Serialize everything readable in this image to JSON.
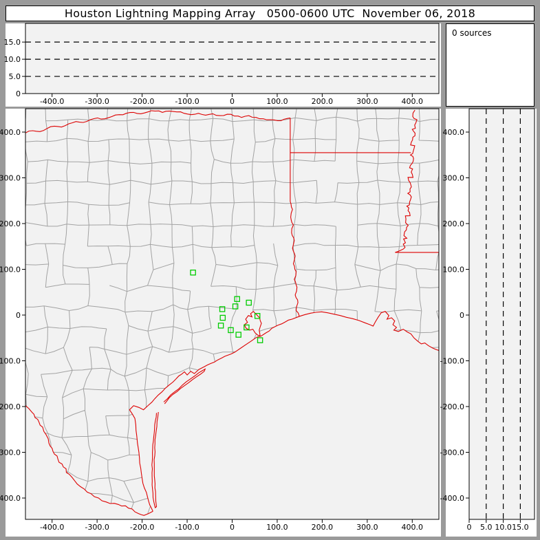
{
  "title": "Houston Lightning Mapping Array   0500-0600 UTC  November 06, 2018",
  "sources_panel": {
    "label": "0 sources"
  },
  "colors": {
    "frame_gray": "#9a9a9a",
    "plot_bg": "#f2f2f2",
    "panel_white": "#ffffff",
    "county_line": "#a2a2a2",
    "state_line": "#dd0000",
    "station_green": "#00cc00",
    "axis_black": "#000000"
  },
  "axes": {
    "east_west_ticks": [
      {
        "v": -400,
        "label": "-400.0"
      },
      {
        "v": -300,
        "label": "-300.0"
      },
      {
        "v": -200,
        "label": "-200.0"
      },
      {
        "v": -100,
        "label": "-100.0"
      },
      {
        "v": 0,
        "label": "0"
      },
      {
        "v": 100,
        "label": "100.0"
      },
      {
        "v": 200,
        "label": "200.0"
      },
      {
        "v": 300,
        "label": "300.0"
      },
      {
        "v": 400,
        "label": "400.0"
      }
    ],
    "north_south_ticks": [
      {
        "v": 400,
        "label": "400.0"
      },
      {
        "v": 300,
        "label": "300.0"
      },
      {
        "v": 200,
        "label": "200.0"
      },
      {
        "v": 100,
        "label": "100.0"
      },
      {
        "v": 0,
        "label": "0"
      },
      {
        "v": -100,
        "label": "-100.0"
      },
      {
        "v": -200,
        "label": "-200.0"
      },
      {
        "v": -300,
        "label": "-300.0"
      },
      {
        "v": -400,
        "label": "-400.0"
      }
    ],
    "altitude_ticks": [
      {
        "v": 0,
        "label": "0"
      },
      {
        "v": 5,
        "label": "5.0"
      },
      {
        "v": 10,
        "label": "10.0"
      },
      {
        "v": 15,
        "label": "15.0"
      }
    ],
    "altitude_dashed_km": [
      5,
      10,
      15
    ]
  },
  "map": {
    "stations_km": [
      [
        -87,
        93
      ],
      [
        11,
        35
      ],
      [
        7,
        19
      ],
      [
        37,
        27
      ],
      [
        -22,
        13
      ],
      [
        -21,
        -6
      ],
      [
        56,
        -2
      ],
      [
        -25,
        -23
      ],
      [
        -3,
        -33
      ],
      [
        32,
        -27
      ],
      [
        14,
        -43
      ],
      [
        62,
        -55
      ]
    ],
    "mesh": {
      "seed": 987654,
      "spacing": 46,
      "jitter_north": 5,
      "jitter_mid": 9,
      "jitter_south": 12,
      "skip_north": 0.08,
      "skip_south": 0.16
    },
    "features": {
      "coast": {
        "amp": 1.2,
        "step": 10,
        "pts": [
          [
            -176,
            -429
          ],
          [
            -183,
            -415
          ],
          [
            -188,
            -398
          ],
          [
            -195,
            -378
          ],
          [
            -200,
            -357
          ],
          [
            -203,
            -335
          ],
          [
            -206,
            -312
          ],
          [
            -209,
            -288
          ],
          [
            -212,
            -263
          ],
          [
            -214,
            -240
          ],
          [
            -216,
            -226
          ],
          [
            -222,
            -216
          ],
          [
            -228,
            -207
          ],
          [
            -219,
            -198
          ],
          [
            -207,
            -202
          ],
          [
            -197,
            -207
          ],
          [
            -186,
            -197
          ],
          [
            -172,
            -183
          ],
          [
            -156,
            -168
          ],
          [
            -140,
            -153
          ],
          [
            -124,
            -139
          ],
          [
            -112,
            -129
          ],
          [
            -106,
            -124
          ],
          [
            -100,
            -131
          ],
          [
            -92,
            -123
          ],
          [
            -84,
            -128
          ],
          [
            -74,
            -119
          ],
          [
            -62,
            -113
          ],
          [
            -48,
            -106
          ],
          [
            -32,
            -98
          ],
          [
            -16,
            -90
          ],
          [
            -2,
            -85
          ],
          [
            6,
            -81
          ],
          [
            18,
            -73
          ],
          [
            30,
            -65
          ],
          [
            42,
            -57
          ],
          [
            52,
            -50
          ],
          [
            56,
            -48
          ],
          [
            64,
            -46
          ],
          [
            75,
            -39
          ],
          [
            88,
            -29
          ],
          [
            102,
            -22
          ],
          [
            118,
            -15
          ],
          [
            133,
            -9
          ],
          [
            146,
            -4
          ],
          [
            152,
            -2
          ],
          [
            162,
            1
          ],
          [
            174,
            4
          ],
          [
            186,
            6
          ],
          [
            199,
            7
          ],
          [
            212,
            5
          ],
          [
            226,
            2
          ],
          [
            240,
            -1
          ],
          [
            254,
            -5
          ],
          [
            268,
            -8
          ],
          [
            282,
            -12
          ],
          [
            295,
            -17
          ],
          [
            306,
            -21
          ],
          [
            313,
            -24
          ],
          [
            318,
            -15
          ],
          [
            324,
            -5
          ],
          [
            331,
            5
          ],
          [
            340,
            8
          ],
          [
            348,
            -1
          ],
          [
            344,
            -9
          ],
          [
            354,
            -6
          ],
          [
            361,
            -13
          ],
          [
            357,
            -21
          ],
          [
            365,
            -27
          ],
          [
            359,
            -33
          ],
          [
            369,
            -36
          ],
          [
            380,
            -31
          ],
          [
            389,
            -37
          ],
          [
            397,
            -41
          ],
          [
            404,
            -50
          ],
          [
            412,
            -57
          ],
          [
            420,
            -63
          ],
          [
            428,
            -61
          ],
          [
            436,
            -67
          ],
          [
            445,
            -72
          ],
          [
            452,
            -75
          ],
          [
            461,
            -78
          ]
        ]
      },
      "galveston_bay": {
        "amp": 1.0,
        "step": 7,
        "closed": true,
        "fill": true,
        "pts": [
          [
            62,
            -45
          ],
          [
            60,
            -33
          ],
          [
            65,
            -18
          ],
          [
            61,
            -6
          ],
          [
            54,
            1
          ],
          [
            47,
            8
          ],
          [
            41,
            3
          ],
          [
            44,
            -4
          ],
          [
            36,
            -1
          ],
          [
            30,
            -9
          ],
          [
            34,
            -16
          ],
          [
            27,
            -21
          ],
          [
            31,
            -29
          ],
          [
            39,
            -33
          ],
          [
            46,
            -31
          ],
          [
            51,
            -39
          ],
          [
            57,
            -44
          ]
        ]
      },
      "rio_grande": {
        "amp": 2.5,
        "step": 8,
        "pts": [
          [
            -459,
            -198
          ],
          [
            -445,
            -212
          ],
          [
            -432,
            -228
          ],
          [
            -421,
            -245
          ],
          [
            -413,
            -262
          ],
          [
            -407,
            -280
          ],
          [
            -398,
            -298
          ],
          [
            -387,
            -315
          ],
          [
            -375,
            -332
          ],
          [
            -362,
            -348
          ],
          [
            -350,
            -362
          ],
          [
            -337,
            -375
          ],
          [
            -322,
            -387
          ],
          [
            -306,
            -397
          ],
          [
            -289,
            -406
          ],
          [
            -271,
            -412
          ],
          [
            -253,
            -414
          ],
          [
            -237,
            -417
          ],
          [
            -222,
            -424
          ],
          [
            -208,
            -434
          ],
          [
            -196,
            -438
          ],
          [
            -186,
            -434
          ],
          [
            -176,
            -429
          ]
        ]
      },
      "red_river": {
        "amp": 2,
        "step": 8,
        "pts": [
          [
            -459,
            398
          ],
          [
            -443,
            403
          ],
          [
            -427,
            401
          ],
          [
            -411,
            408
          ],
          [
            -395,
            413
          ],
          [
            -379,
            411
          ],
          [
            -363,
            418
          ],
          [
            -347,
            423
          ],
          [
            -331,
            421
          ],
          [
            -315,
            427
          ],
          [
            -299,
            431
          ],
          [
            -283,
            429
          ],
          [
            -267,
            434
          ],
          [
            -251,
            438
          ],
          [
            -235,
            441
          ],
          [
            -219,
            443
          ],
          [
            -203,
            440
          ],
          [
            -187,
            444
          ],
          [
            -171,
            446
          ],
          [
            -155,
            443
          ],
          [
            -139,
            446
          ],
          [
            -123,
            444
          ],
          [
            -107,
            441
          ],
          [
            -91,
            438
          ],
          [
            -75,
            441
          ],
          [
            -59,
            437
          ],
          [
            -43,
            440
          ],
          [
            -27,
            436
          ],
          [
            -11,
            439
          ],
          [
            5,
            435
          ],
          [
            21,
            432
          ],
          [
            37,
            436
          ],
          [
            53,
            432
          ],
          [
            69,
            429
          ],
          [
            85,
            427
          ],
          [
            101,
            425
          ],
          [
            115,
            428
          ],
          [
            129,
            431
          ]
        ]
      },
      "tx_state_line_east": {
        "amp": 0,
        "step": 10,
        "pts": [
          [
            129,
            431
          ],
          [
            129,
            248
          ]
        ]
      },
      "sabine_river": {
        "amp": 1.5,
        "step": 7,
        "pts": [
          [
            129,
            248
          ],
          [
            134,
            231
          ],
          [
            130,
            214
          ],
          [
            136,
            197
          ],
          [
            132,
            180
          ],
          [
            138,
            163
          ],
          [
            134,
            146
          ],
          [
            140,
            129
          ],
          [
            136,
            112
          ],
          [
            142,
            95
          ],
          [
            138,
            78
          ],
          [
            144,
            61
          ],
          [
            140,
            44
          ],
          [
            146,
            27
          ],
          [
            142,
            10
          ],
          [
            149,
            -2
          ]
        ]
      },
      "ar_la_border": {
        "amp": 0,
        "step": 10,
        "pts": [
          [
            129,
            355
          ],
          [
            397,
            355
          ]
        ]
      },
      "mississippi_river": {
        "amp": 5.5,
        "step": 6,
        "pts": [
          [
            406,
            448
          ],
          [
            401,
            434
          ],
          [
            408,
            420
          ],
          [
            400,
            406
          ],
          [
            406,
            392
          ],
          [
            398,
            378
          ],
          [
            404,
            364
          ],
          [
            396,
            350
          ],
          [
            402,
            336
          ],
          [
            394,
            322
          ],
          [
            400,
            308
          ],
          [
            392,
            294
          ],
          [
            398,
            280
          ],
          [
            390,
            266
          ],
          [
            396,
            252
          ],
          [
            388,
            238
          ],
          [
            394,
            224
          ],
          [
            386,
            210
          ],
          [
            391,
            196
          ],
          [
            383,
            182
          ],
          [
            388,
            168
          ],
          [
            380,
            155
          ],
          [
            384,
            148
          ],
          [
            375,
            142
          ],
          [
            368,
            139
          ],
          [
            362,
            137
          ]
        ]
      },
      "la_ms_border": {
        "amp": 0,
        "step": 10,
        "pts": [
          [
            362,
            137
          ],
          [
            461,
            137
          ]
        ]
      },
      "padre_island": {
        "amp": 1,
        "step": 10,
        "pts": [
          [
            -168,
            -214
          ],
          [
            -172,
            -240
          ],
          [
            -175,
            -275
          ],
          [
            -177,
            -310
          ],
          [
            -178,
            -345
          ],
          [
            -177,
            -380
          ],
          [
            -174,
            -408
          ],
          [
            -171,
            -421
          ],
          [
            -168,
            -419
          ],
          [
            -170,
            -395
          ],
          [
            -172,
            -360
          ],
          [
            -173,
            -325
          ],
          [
            -172,
            -290
          ],
          [
            -169,
            -255
          ],
          [
            -165,
            -222
          ],
          [
            -164,
            -212
          ]
        ]
      },
      "matagorda_islands": {
        "amp": 1,
        "step": 10,
        "pts": [
          [
            -152,
            -190
          ],
          [
            -128,
            -168
          ],
          [
            -102,
            -146
          ],
          [
            -74,
            -126
          ],
          [
            -60,
            -118
          ],
          [
            -62,
            -123
          ],
          [
            -88,
            -141
          ],
          [
            -114,
            -160
          ],
          [
            -140,
            -181
          ],
          [
            -150,
            -194
          ]
        ]
      }
    }
  }
}
